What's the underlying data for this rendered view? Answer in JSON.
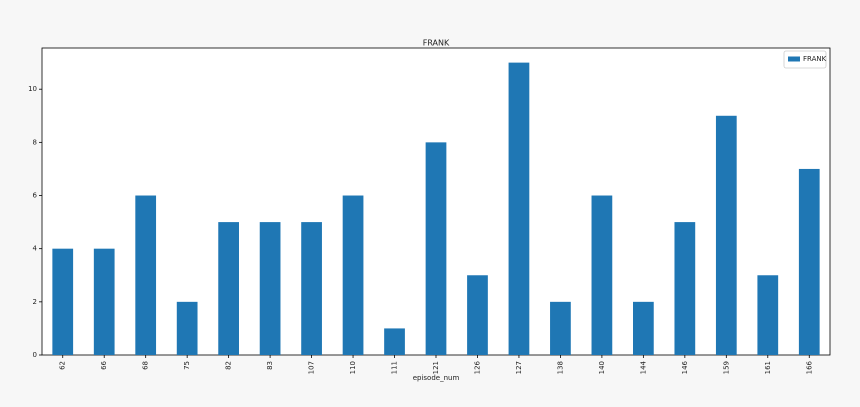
{
  "chart_data": {
    "type": "bar",
    "title": "FRANK",
    "x_label": "episode_num",
    "categories": [
      "62",
      "66",
      "68",
      "75",
      "82",
      "83",
      "107",
      "110",
      "111",
      "121",
      "126",
      "127",
      "138",
      "140",
      "144",
      "146",
      "159",
      "161",
      "166"
    ],
    "series": [
      {
        "name": "FRANK",
        "color": "#1f77b4",
        "values": [
          4,
          4,
          6,
          2,
          5,
          5,
          5,
          6,
          1,
          8,
          3,
          11,
          2,
          6,
          2,
          5,
          9,
          3,
          7
        ]
      }
    ],
    "ylim": [
      0,
      11.55
    ],
    "yticks": [
      0,
      2,
      4,
      6,
      8,
      10
    ],
    "legend": "upper right"
  }
}
